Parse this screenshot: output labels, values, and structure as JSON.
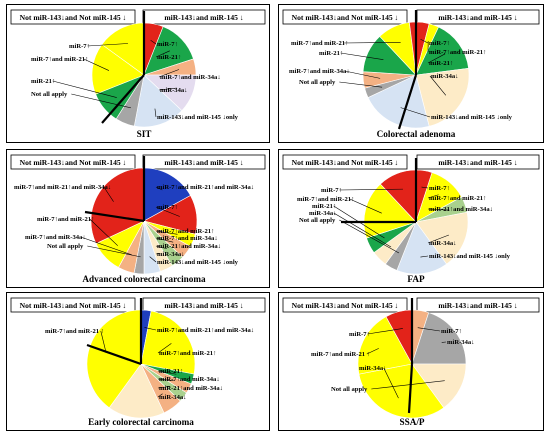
{
  "colors": {
    "red": "#e2231a",
    "green": "#1aa64a",
    "yellow": "#ffff00",
    "blue": "#1f3fbf",
    "salmon": "#f4b183",
    "lightgreen": "#a9d18e",
    "darkgray": "#a6a6a6",
    "lavender": "#e4dcef",
    "lightblue": "#d6e3f3",
    "cream": "#fdebc7"
  },
  "panels": [
    {
      "title": "SIT",
      "header_left": "Not miR-143↓and Not miR-145 ↓",
      "header_right": "miR-143↓and miR-145 ↓",
      "slices": [
        {
          "label": "miR-7↑",
          "color": "red",
          "share": 0.06
        },
        {
          "label": "miR-21↑",
          "color": "green",
          "share": 0.14
        },
        {
          "label": "miR-7↑and miR-34a↓",
          "color": "salmon",
          "share": 0.05
        },
        {
          "label": "miR-34a↓",
          "color": "lavender",
          "share": 0.12
        },
        {
          "label": "miR-143↓and miR-145 ↓only",
          "color": "lightblue",
          "share": 0.16
        },
        {
          "label": "Not all apply",
          "color": "darkgray",
          "share": 0.06
        },
        {
          "label": "miR-21↑",
          "color": "green",
          "share": 0.1
        },
        {
          "label": "miR-7↑and miR-21↑",
          "color": "yellow",
          "share": 0.16
        },
        {
          "label": "miR-7↑",
          "color": "yellow",
          "share": 0.15
        }
      ]
    },
    {
      "title": "Colorectal adenoma",
      "header_left": "Not miR-143↓and Not miR-145 ↓",
      "header_right": "miR-143↓and miR-145 ↓",
      "slices": [
        {
          "label": "miR-7↑",
          "color": "red",
          "share": 0.04
        },
        {
          "label": "miR-7↑and miR-21↑",
          "color": "yellow",
          "share": 0.03
        },
        {
          "label": "miR-21↑",
          "color": "green",
          "share": 0.16
        },
        {
          "label": "miR-34a↓",
          "color": "cream",
          "share": 0.23
        },
        {
          "label": "miR-143↓and miR-145 ↓only",
          "color": "lightblue",
          "share": 0.22
        },
        {
          "label": "Not all apply",
          "color": "darkgray",
          "share": 0.03
        },
        {
          "label": "miR-7↑and miR-34a↓",
          "color": "salmon",
          "share": 0.05
        },
        {
          "label": "miR-21↑",
          "color": "green",
          "share": 0.12
        },
        {
          "label": "miR-7↑and miR-21↑",
          "color": "yellow",
          "share": 0.1
        },
        {
          "label": "miR-7↑",
          "color": "red",
          "share": 0.02
        }
      ]
    },
    {
      "title": "Advanced colorectal carcinoma",
      "header_left": "Not miR-143↓and Not miR-145 ↓",
      "header_right": "miR-143↓and miR-145 ↓",
      "slices": [
        {
          "label": "miR-7↑and miR-21↑and miR-34a↓",
          "color": "blue",
          "share": 0.17
        },
        {
          "label": "miR-7↑",
          "color": "red",
          "share": 0.12
        },
        {
          "label": "miR-7↑and miR-21↑",
          "color": "yellow",
          "share": 0.04
        },
        {
          "label": "miR-7↑and miR-34a↓",
          "color": "salmon",
          "share": 0.04
        },
        {
          "label": "miR-21↑and miR-34a↓",
          "color": "lightgreen",
          "share": 0.04
        },
        {
          "label": "miR-34a↓",
          "color": "cream",
          "share": 0.04
        },
        {
          "label": "miR-143↓and miR-145 ↓only",
          "color": "lightblue",
          "share": 0.05
        },
        {
          "label": "Not all apply",
          "color": "darkgray",
          "share": 0.03
        },
        {
          "label": "miR-7↑and miR-34a↓",
          "color": "salmon",
          "share": 0.05
        },
        {
          "label": "miR-7↑and miR-21↑",
          "color": "yellow",
          "share": 0.1
        },
        {
          "label": "miR-7↑and miR-21↑and miR-34a↓",
          "color": "red",
          "share": 0.32
        }
      ]
    },
    {
      "title": "FAP",
      "header_left": "Not miR-143↓and Not miR-145 ↓",
      "header_right": "miR-143↓and miR-145 ↓",
      "slices": [
        {
          "label": "miR-7↑",
          "color": "red",
          "share": 0.05
        },
        {
          "label": "miR-7↑and miR-21↑",
          "color": "yellow",
          "share": 0.12
        },
        {
          "label": "miR-21↑and miR-34a↓",
          "color": "lightgreen",
          "share": 0.05
        },
        {
          "label": "miR-34a↓",
          "color": "cream",
          "share": 0.18
        },
        {
          "label": "miR-143↓and miR-145 ↓only",
          "color": "lightblue",
          "share": 0.16
        },
        {
          "label": "Not all apply",
          "color": "darkgray",
          "share": 0.04
        },
        {
          "label": "miR-34a↓",
          "color": "cream",
          "share": 0.05
        },
        {
          "label": "miR-21↑",
          "color": "green",
          "share": 0.05
        },
        {
          "label": "miR-7↑and miR-21↑",
          "color": "yellow",
          "share": 0.18
        },
        {
          "label": "miR-7↑",
          "color": "red",
          "share": 0.12
        }
      ]
    },
    {
      "title": "Early colorectal carcinoma",
      "header_left": "Not miR-143↓and Not miR-145 ↓",
      "header_right": "miR-143↓and miR-145 ↓",
      "slices": [
        {
          "label": "miR-7↑and miR-21↑and miR-34a↓",
          "color": "blue",
          "share": 0.03
        },
        {
          "label": "miR-7↑and miR-21↑",
          "color": "yellow",
          "share": 0.25
        },
        {
          "label": "miR-21↑",
          "color": "green",
          "share": 0.03
        },
        {
          "label": "miR-7↑and miR-34a↓",
          "color": "salmon",
          "share": 0.03
        },
        {
          "label": "miR-21↑and miR-34a↓",
          "color": "lightgreen",
          "share": 0.03
        },
        {
          "label": "miR-34a↓",
          "color": "salmon",
          "share": 0.06
        },
        {
          "label": "",
          "color": "cream",
          "share": 0.17
        },
        {
          "label": "miR-7↑and miR-21 ↑",
          "color": "yellow",
          "share": 0.4
        }
      ]
    },
    {
      "title": "SSA/P",
      "header_left": "Not miR-143↓and Not miR-145 ↓",
      "header_right": "miR-143↓and miR-145 ↓",
      "slices": [
        {
          "label": "miR-7↑",
          "color": "salmon",
          "share": 0.05
        },
        {
          "label": "miR-34a↓",
          "color": "darkgray",
          "share": 0.2
        },
        {
          "label": "Not all apply",
          "color": "cream",
          "share": 0.15
        },
        {
          "label": "miR-34a↓",
          "color": "yellow",
          "share": 0.32
        },
        {
          "label": "miR-7↑and miR-21 ↑",
          "color": "yellow",
          "share": 0.2
        },
        {
          "label": "miR-7↑",
          "color": "red",
          "share": 0.08
        }
      ]
    }
  ]
}
